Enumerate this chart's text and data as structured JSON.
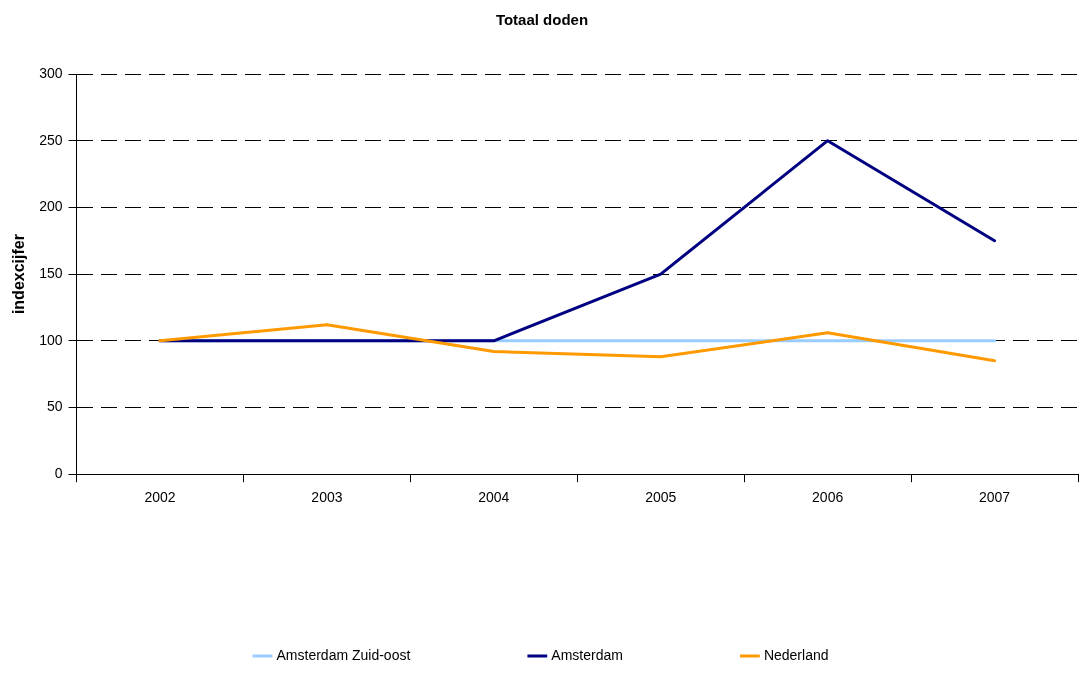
{
  "chart_data": {
    "type": "line",
    "title": "Totaal doden",
    "ylabel": "indexcijfer",
    "categories": [
      "2002",
      "2003",
      "2004",
      "2005",
      "2006",
      "2007"
    ],
    "series": [
      {
        "name": "Amsterdam Zuid-oost",
        "color": "#99ccff",
        "values": [
          100,
          100,
          100,
          100,
          100,
          100
        ]
      },
      {
        "name": "Amsterdam",
        "color": "#000080",
        "values": [
          100,
          100,
          100,
          150,
          250,
          175
        ]
      },
      {
        "name": "Nederland",
        "color": "#ff9900",
        "values": [
          100,
          112,
          92,
          88,
          106,
          85
        ]
      }
    ],
    "ylim": [
      0,
      300
    ],
    "yticks": [
      0,
      50,
      100,
      150,
      200,
      250,
      300
    ],
    "grid": "y",
    "legend": "bottom",
    "marker": "none",
    "line_style": "solid"
  }
}
